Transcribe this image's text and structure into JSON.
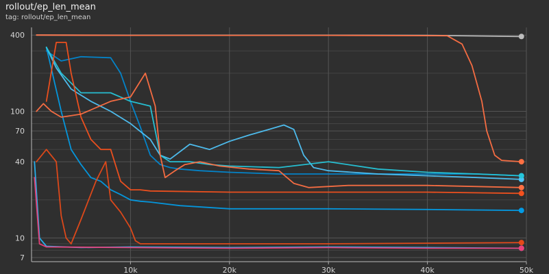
{
  "header": {
    "title": "rollout/ep_len_mean",
    "subtitle": "tag: rollout/ep_len_mean"
  },
  "chart_data": {
    "type": "line",
    "title": "rollout/ep_len_mean",
    "subtitle": "tag: rollout/ep_len_mean",
    "xlabel": "",
    "ylabel": "",
    "y_scale": "log",
    "xlim": [
      0,
      50000
    ],
    "ylim": [
      6.5,
      460
    ],
    "x_ticks": [
      10000,
      20000,
      30000,
      40000,
      50000
    ],
    "x_tick_labels": [
      "10k",
      "20k",
      "30k",
      "40k",
      "50k"
    ],
    "y_ticks": [
      7,
      10,
      40,
      70,
      100,
      400
    ],
    "y_tick_labels": [
      "7",
      "10",
      "40",
      "70",
      "100",
      "400"
    ],
    "y_minor_gridlines": [
      8,
      9,
      20,
      30,
      50,
      60,
      80,
      90,
      200,
      300
    ],
    "grid": true,
    "legend": "none",
    "series": [
      {
        "color": "#bdbdbd",
        "values": [
          [
            500,
            400
          ],
          [
            10000,
            399
          ],
          [
            20000,
            399
          ],
          [
            30000,
            399
          ],
          [
            40000,
            398
          ],
          [
            49500,
            390
          ]
        ]
      },
      {
        "color": "#ff7043",
        "values": [
          [
            500,
            400
          ],
          [
            10000,
            398
          ],
          [
            20000,
            398
          ],
          [
            30000,
            398
          ],
          [
            42000,
            395
          ],
          [
            43500,
            340
          ],
          [
            44500,
            230
          ],
          [
            45500,
            120
          ],
          [
            46000,
            70
          ],
          [
            46800,
            45
          ],
          [
            47500,
            41
          ],
          [
            49500,
            40
          ]
        ]
      },
      {
        "color": "#29b6f6",
        "values": [
          [
            300,
            40
          ],
          [
            800,
            10
          ],
          [
            1500,
            8.6
          ],
          [
            5000,
            8.4
          ],
          [
            10000,
            8.5
          ],
          [
            20000,
            8.4
          ],
          [
            30000,
            8.5
          ],
          [
            40000,
            8.4
          ],
          [
            49500,
            8.3
          ]
        ]
      },
      {
        "color": "#039be5",
        "values": [
          [
            1500,
            320
          ],
          [
            3000,
            100
          ],
          [
            4000,
            50
          ],
          [
            5000,
            38
          ],
          [
            6000,
            30
          ],
          [
            7000,
            28
          ],
          [
            8000,
            24
          ],
          [
            9000,
            22
          ],
          [
            10000,
            20
          ],
          [
            11000,
            19.5
          ],
          [
            12000,
            19.2
          ],
          [
            15000,
            18
          ],
          [
            20000,
            17
          ],
          [
            30000,
            17
          ],
          [
            40000,
            16.8
          ],
          [
            49500,
            16.5
          ]
        ]
      },
      {
        "color": "#0288d1",
        "values": [
          [
            1500,
            300
          ],
          [
            3000,
            250
          ],
          [
            5000,
            270
          ],
          [
            8000,
            265
          ],
          [
            9000,
            200
          ],
          [
            10000,
            120
          ],
          [
            11000,
            75
          ],
          [
            12000,
            45
          ],
          [
            13000,
            38
          ],
          [
            14000,
            36
          ],
          [
            15000,
            35
          ],
          [
            17000,
            34
          ],
          [
            20000,
            33
          ],
          [
            25000,
            32
          ],
          [
            30000,
            32
          ],
          [
            40000,
            32
          ],
          [
            45000,
            32
          ],
          [
            49500,
            31
          ]
        ]
      },
      {
        "color": "#4fc3f7",
        "values": [
          [
            1500,
            320
          ],
          [
            2500,
            220
          ],
          [
            4000,
            150
          ],
          [
            6000,
            120
          ],
          [
            8000,
            100
          ],
          [
            10000,
            80
          ],
          [
            12000,
            60
          ],
          [
            13000,
            45
          ],
          [
            14000,
            42
          ],
          [
            16000,
            55
          ],
          [
            18000,
            50
          ],
          [
            20000,
            58
          ],
          [
            22000,
            65
          ],
          [
            24000,
            72
          ],
          [
            25500,
            78
          ],
          [
            26500,
            72
          ],
          [
            27500,
            45
          ],
          [
            28500,
            36
          ],
          [
            30000,
            34
          ],
          [
            35000,
            32
          ],
          [
            40000,
            31
          ],
          [
            45000,
            30
          ],
          [
            49500,
            29
          ]
        ]
      },
      {
        "color": "#26c6da",
        "values": [
          [
            1500,
            320
          ],
          [
            3000,
            200
          ],
          [
            5000,
            140
          ],
          [
            8000,
            140
          ],
          [
            10000,
            120
          ],
          [
            12000,
            110
          ],
          [
            13000,
            45
          ],
          [
            14000,
            40
          ],
          [
            16000,
            40
          ],
          [
            18000,
            38
          ],
          [
            20000,
            37
          ],
          [
            25000,
            36
          ],
          [
            30000,
            40
          ],
          [
            35000,
            35
          ],
          [
            40000,
            33
          ],
          [
            45000,
            32
          ],
          [
            49500,
            31
          ]
        ]
      },
      {
        "color": "#f4511e",
        "values": [
          [
            1500,
            120
          ],
          [
            2500,
            350
          ],
          [
            3500,
            350
          ],
          [
            4000,
            200
          ],
          [
            5000,
            90
          ],
          [
            6000,
            60
          ],
          [
            7000,
            50
          ],
          [
            8000,
            50
          ],
          [
            9000,
            28
          ],
          [
            10000,
            24
          ],
          [
            11000,
            24
          ],
          [
            12000,
            23.5
          ],
          [
            20000,
            23
          ],
          [
            30000,
            23
          ],
          [
            40000,
            23
          ],
          [
            49500,
            22.5
          ]
        ]
      },
      {
        "color": "#ff7043",
        "values": [
          [
            500,
            100
          ],
          [
            1200,
            115
          ],
          [
            2000,
            100
          ],
          [
            3000,
            90
          ],
          [
            5000,
            95
          ],
          [
            8000,
            120
          ],
          [
            10000,
            130
          ],
          [
            11500,
            200
          ],
          [
            12500,
            110
          ],
          [
            13000,
            45
          ],
          [
            13500,
            30
          ],
          [
            14500,
            34
          ],
          [
            15500,
            38
          ],
          [
            17000,
            40
          ],
          [
            19000,
            37
          ],
          [
            22000,
            35
          ],
          [
            25000,
            34
          ],
          [
            26500,
            27
          ],
          [
            28000,
            25
          ],
          [
            32000,
            26
          ],
          [
            36000,
            26
          ],
          [
            40000,
            26
          ],
          [
            45000,
            25.5
          ],
          [
            49500,
            25
          ]
        ]
      },
      {
        "color": "#e64a19",
        "values": [
          [
            500,
            40
          ],
          [
            1500,
            50
          ],
          [
            2500,
            40
          ],
          [
            3000,
            15
          ],
          [
            3500,
            10
          ],
          [
            4000,
            9
          ],
          [
            5000,
            14
          ],
          [
            6500,
            28
          ],
          [
            7500,
            40
          ],
          [
            8000,
            20
          ],
          [
            9000,
            16
          ],
          [
            10000,
            12
          ],
          [
            10500,
            9.5
          ],
          [
            11000,
            9
          ],
          [
            20000,
            9
          ],
          [
            30000,
            9
          ],
          [
            40000,
            9.1
          ],
          [
            49500,
            9.2
          ]
        ]
      },
      {
        "color": "#ec407a",
        "values": [
          [
            300,
            30
          ],
          [
            800,
            9
          ],
          [
            1500,
            8.5
          ],
          [
            10000,
            8.4
          ],
          [
            20000,
            8.3
          ],
          [
            30000,
            8.4
          ],
          [
            40000,
            8.3
          ],
          [
            49500,
            8.3
          ]
        ]
      }
    ]
  }
}
